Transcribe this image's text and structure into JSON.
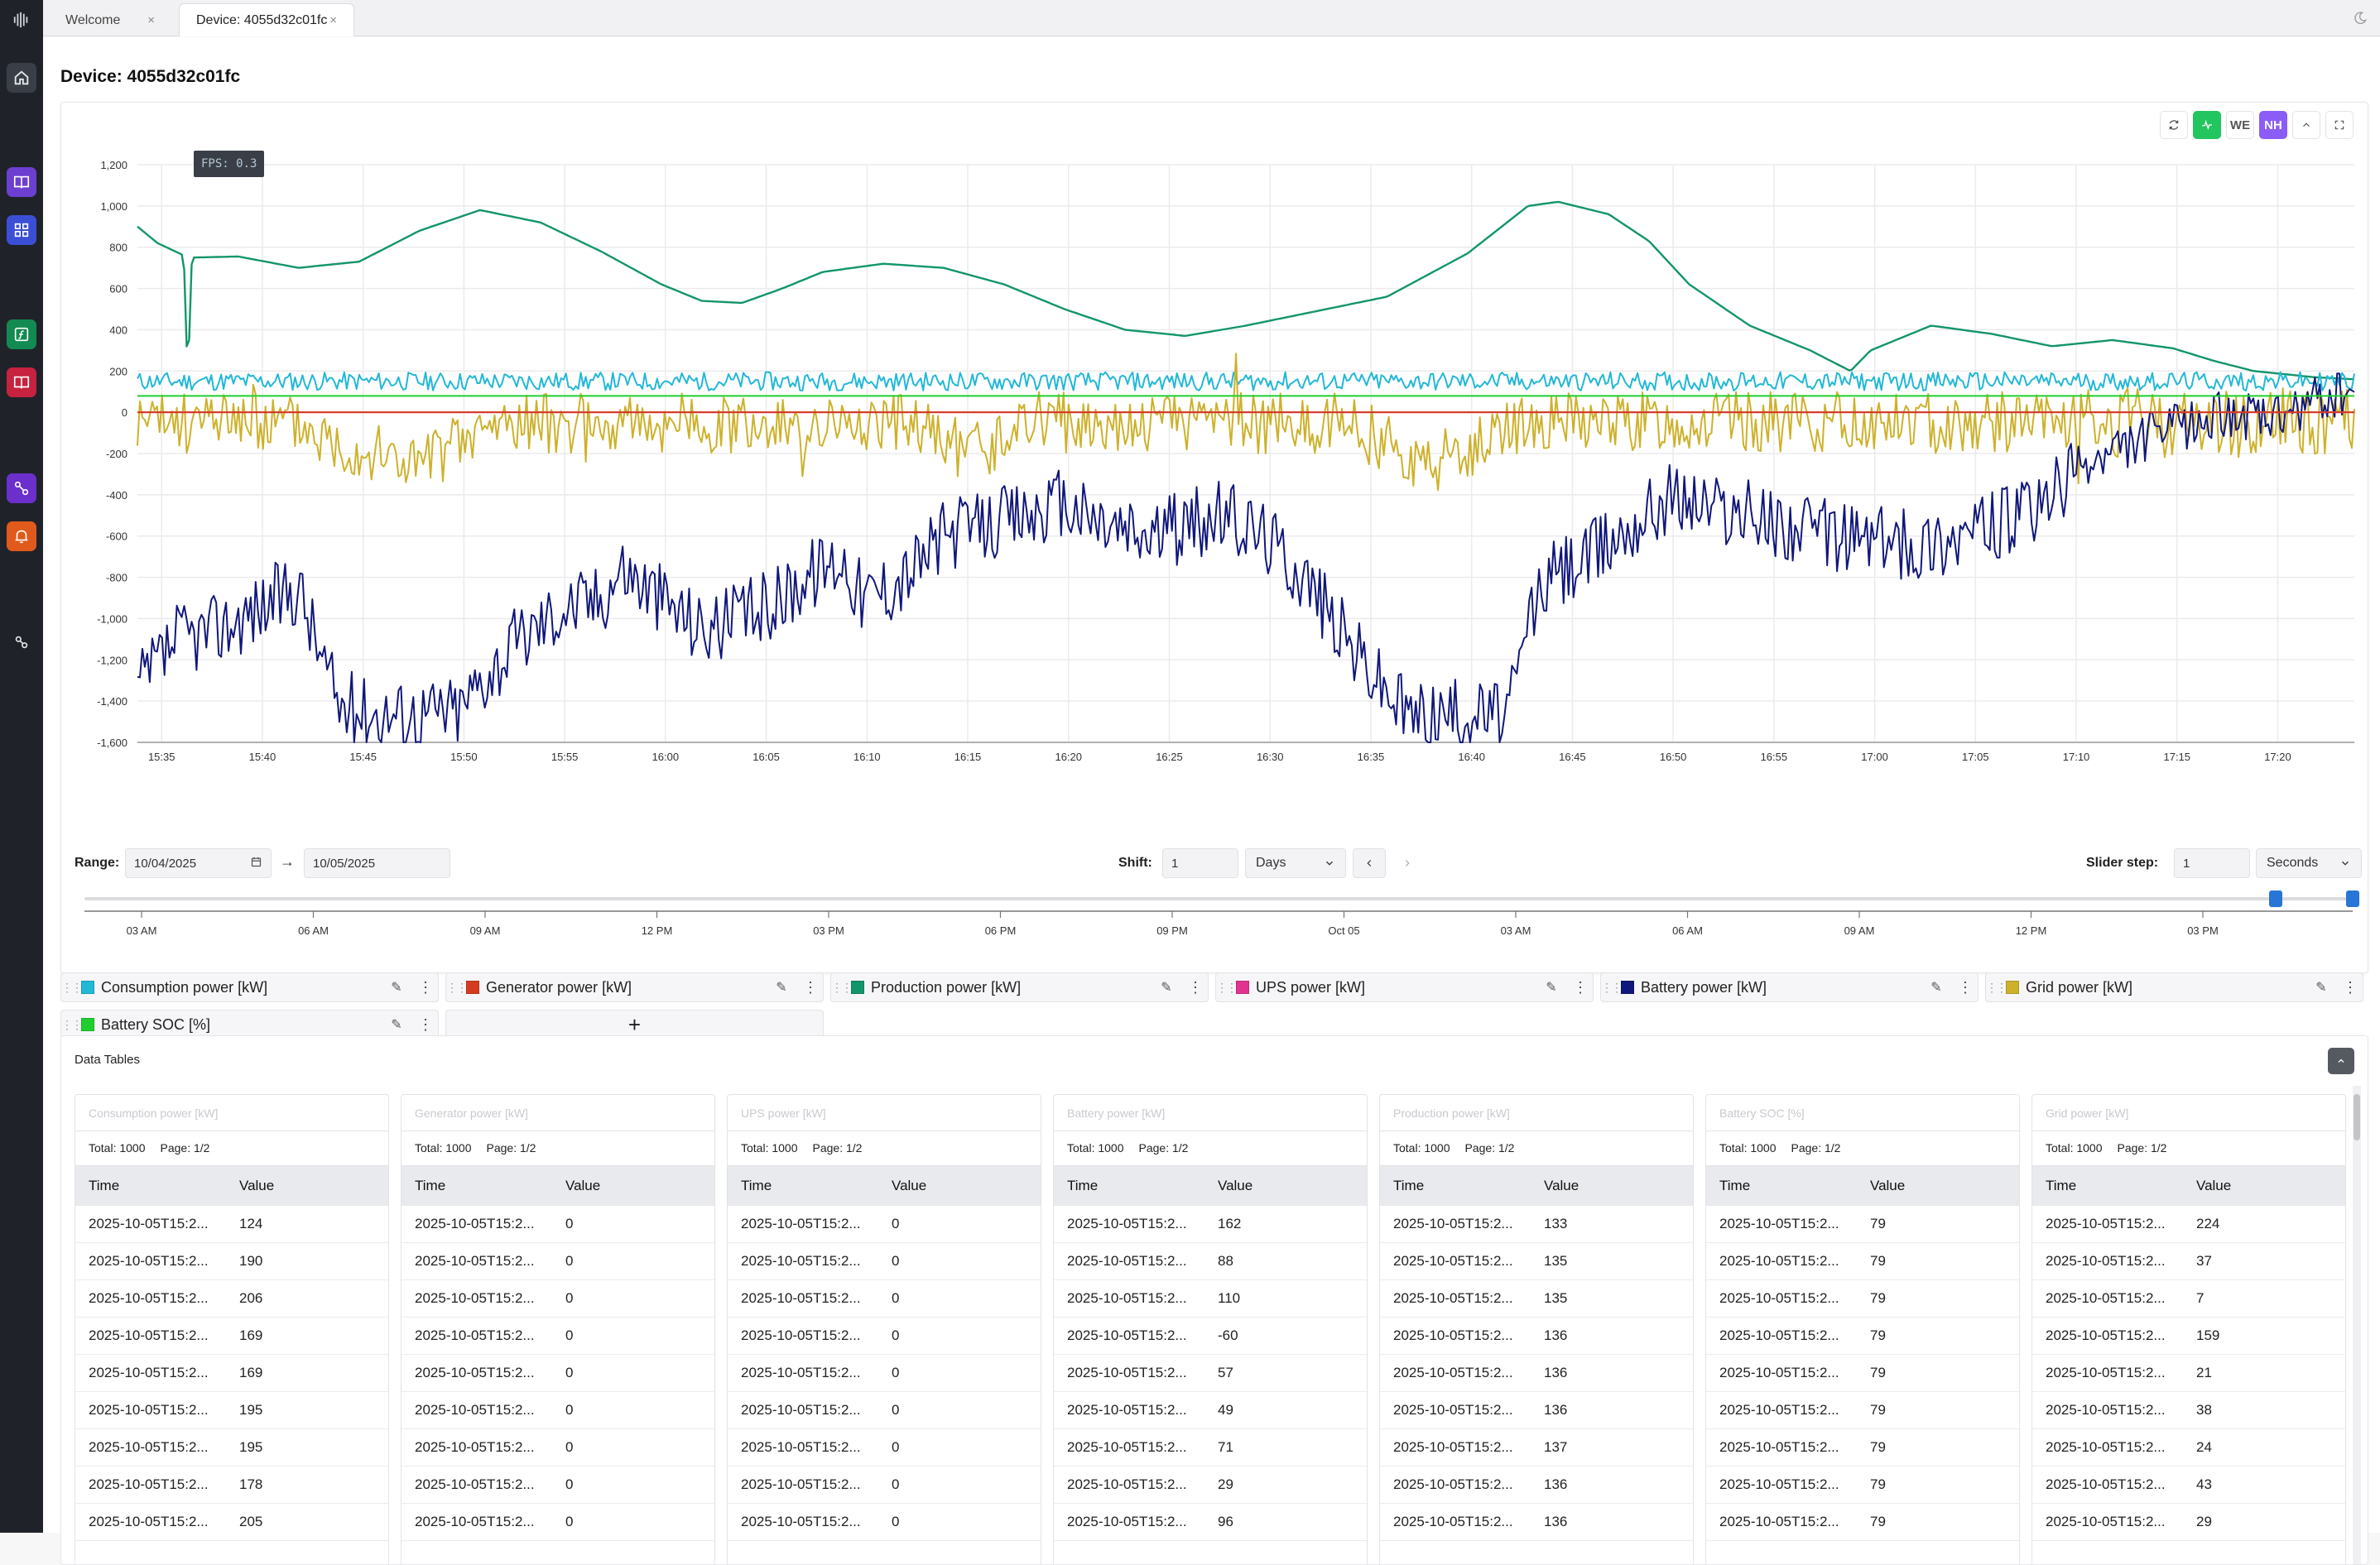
{
  "tabs": [
    {
      "label": "Welcome",
      "close": "×",
      "active": false
    },
    {
      "label": "Device: 4055d32c01fc",
      "close": "×",
      "active": true
    }
  ],
  "page_title": "Device: 4055d32c01fc",
  "fps_label": "FPS: 0.3",
  "toolbar": {
    "we_label": "WE",
    "nh_label": "NH",
    "accent_green": "#22c55e",
    "accent_purple": "#8b5cf6"
  },
  "chart_data": {
    "type": "line",
    "y_ticks": [
      "1,200",
      "1,000",
      "800",
      "600",
      "400",
      "200",
      "0",
      "-200",
      "-400",
      "-600",
      "-800",
      "-1,000",
      "-1,200",
      "-1,400",
      "-1,600"
    ],
    "ylim": [
      -1600,
      1200
    ],
    "x_ticks": [
      "15:35",
      "15:40",
      "15:45",
      "15:50",
      "15:55",
      "16:00",
      "16:05",
      "16:10",
      "16:15",
      "16:20",
      "16:25",
      "16:30",
      "16:35",
      "16:40",
      "16:45",
      "16:50",
      "16:55",
      "17:00",
      "17:05",
      "17:10",
      "17:15",
      "17:20"
    ],
    "xlim_minutes": [
      0,
      110
    ],
    "grid": true,
    "series": [
      {
        "name": "Production power [kW]",
        "color": "#13956b",
        "kind": "smooth",
        "points": [
          [
            0,
            900
          ],
          [
            1,
            820
          ],
          [
            2.3,
            760
          ],
          [
            2.5,
            150
          ],
          [
            2.7,
            750
          ],
          [
            5,
            755
          ],
          [
            8,
            700
          ],
          [
            11,
            730
          ],
          [
            14,
            880
          ],
          [
            17,
            980
          ],
          [
            20,
            920
          ],
          [
            23,
            780
          ],
          [
            26,
            620
          ],
          [
            28,
            540
          ],
          [
            30,
            530
          ],
          [
            32,
            600
          ],
          [
            34,
            680
          ],
          [
            37,
            720
          ],
          [
            40,
            700
          ],
          [
            43,
            620
          ],
          [
            46,
            500
          ],
          [
            49,
            400
          ],
          [
            52,
            370
          ],
          [
            55,
            420
          ],
          [
            58,
            480
          ],
          [
            62,
            560
          ],
          [
            66,
            770
          ],
          [
            69,
            1000
          ],
          [
            70.5,
            1020
          ],
          [
            73,
            960
          ],
          [
            75,
            830
          ],
          [
            77,
            620
          ],
          [
            80,
            420
          ],
          [
            83,
            300
          ],
          [
            85,
            200
          ],
          [
            86,
            300
          ],
          [
            89,
            420
          ],
          [
            92,
            380
          ],
          [
            95,
            320
          ],
          [
            98,
            350
          ],
          [
            101,
            310
          ],
          [
            103,
            250
          ],
          [
            105,
            200
          ],
          [
            107,
            180
          ],
          [
            108,
            170
          ],
          [
            110,
            160
          ]
        ]
      },
      {
        "name": "Consumption power [kW]",
        "color": "#22b8d6",
        "kind": "noise",
        "base": 150,
        "amp": 45,
        "seed": 11
      },
      {
        "name": "Grid power [kW]",
        "color": "#cdb12b",
        "kind": "grid",
        "seed": 23
      },
      {
        "name": "Battery power [kW]",
        "color": "#10177a",
        "kind": "battery",
        "seed": 37
      },
      {
        "name": "Battery SOC [%]",
        "color": "#1fcf2e",
        "kind": "flat",
        "value": 79
      },
      {
        "name": "UPS power [kW]",
        "color": "#e0338f",
        "kind": "flat",
        "value": 0
      },
      {
        "name": "Generator power [kW]",
        "color": "#d43b20",
        "kind": "flat",
        "value": 0
      }
    ]
  },
  "controls": {
    "range_label": "Range:",
    "range_from": "10/04/2025",
    "range_to": "10/05/2025",
    "arrow": "→",
    "shift_label": "Shift:",
    "shift_value": "1",
    "shift_unit": "Days",
    "slider_step_label": "Slider step:",
    "slider_step_value": "1",
    "slider_step_unit": "Seconds",
    "slider_handle_start_fraction": 0.966,
    "slider_handle_end_fraction": 1.0,
    "timeline_ticks": [
      "03 AM",
      "06 AM",
      "09 AM",
      "12 PM",
      "03 PM",
      "06 PM",
      "09 PM",
      "Oct 05",
      "03 AM",
      "06 AM",
      "09 AM",
      "12 PM",
      "03 PM"
    ]
  },
  "series_chips": [
    {
      "label": "Consumption power [kW]",
      "color": "#22b8d6"
    },
    {
      "label": "Generator power [kW]",
      "color": "#d43b20"
    },
    {
      "label": "Production power [kW]",
      "color": "#13956b"
    },
    {
      "label": "UPS power [kW]",
      "color": "#e0338f"
    },
    {
      "label": "Battery power [kW]",
      "color": "#10177a"
    },
    {
      "label": "Grid power [kW]",
      "color": "#cdb12b"
    },
    {
      "label": "Battery SOC [%]",
      "color": "#1fcf2e"
    }
  ],
  "add_series": "+",
  "data_tables": {
    "title": "Data Tables",
    "time_header": "Time",
    "value_header": "Value",
    "tables": [
      {
        "title": "Consumption power [kW]",
        "total": "Total: 1000",
        "page": "Page: 1/2",
        "values": [
          "124",
          "190",
          "206",
          "169",
          "169",
          "195",
          "195",
          "178",
          "205"
        ]
      },
      {
        "title": "Generator power [kW]",
        "total": "Total: 1000",
        "page": "Page: 1/2",
        "values": [
          "0",
          "0",
          "0",
          "0",
          "0",
          "0",
          "0",
          "0",
          "0"
        ]
      },
      {
        "title": "UPS power [kW]",
        "total": "Total: 1000",
        "page": "Page: 1/2",
        "values": [
          "0",
          "0",
          "0",
          "0",
          "0",
          "0",
          "0",
          "0",
          "0"
        ]
      },
      {
        "title": "Battery power [kW]",
        "total": "Total: 1000",
        "page": "Page: 1/2",
        "values": [
          "162",
          "88",
          "110",
          "-60",
          "57",
          "49",
          "71",
          "29",
          "96"
        ]
      },
      {
        "title": "Production power [kW]",
        "total": "Total: 1000",
        "page": "Page: 1/2",
        "values": [
          "133",
          "135",
          "135",
          "136",
          "136",
          "136",
          "137",
          "136",
          "136"
        ]
      },
      {
        "title": "Battery SOC [%]",
        "total": "Total: 1000",
        "page": "Page: 1/2",
        "values": [
          "79",
          "79",
          "79",
          "79",
          "79",
          "79",
          "79",
          "79",
          "79"
        ]
      },
      {
        "title": "Grid power [kW]",
        "total": "Total: 1000",
        "page": "Page: 1/2",
        "values": [
          "224",
          "37",
          "7",
          "159",
          "21",
          "38",
          "24",
          "43",
          "29"
        ]
      }
    ],
    "time_text": "2025-10-05T15:2..."
  }
}
